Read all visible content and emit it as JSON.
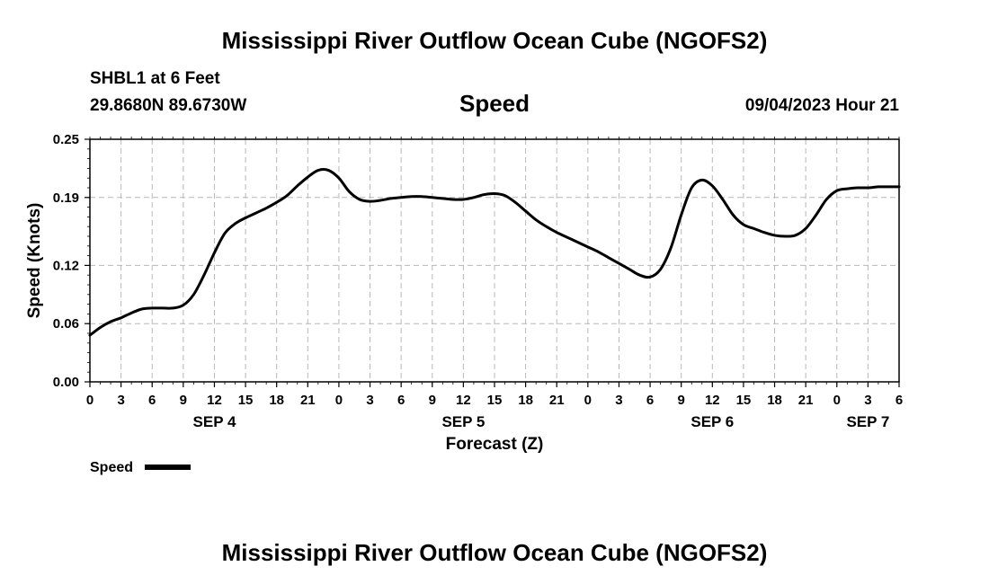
{
  "page": {
    "title_top": "Mississippi River Outflow Ocean Cube (NGOFS2)",
    "title_bottom": "Mississippi River Outflow Ocean Cube (NGOFS2)",
    "station": "SHBL1 at 6 Feet",
    "coords": "29.8680N  89.6730W",
    "plot_title": "Speed",
    "timestamp": "09/04/2023 Hour 21"
  },
  "chart_data": {
    "type": "line",
    "title": "Speed",
    "xlabel": "Forecast (Z)",
    "ylabel": "Speed (Knots)",
    "ylim": [
      0,
      0.25
    ],
    "xlim": [
      0,
      78
    ],
    "y_ticks": [
      0.0,
      0.06,
      0.12,
      0.19,
      0.25
    ],
    "y_tick_labels": [
      "0.00",
      "0.06",
      "0.12",
      "0.19",
      "0.25"
    ],
    "x_ticks": [
      0,
      3,
      6,
      9,
      12,
      15,
      18,
      21,
      24,
      27,
      30,
      33,
      36,
      39,
      42,
      45,
      48,
      51,
      54,
      57,
      60,
      63,
      66,
      69,
      72,
      75,
      78
    ],
    "x_tick_labels": [
      "0",
      "3",
      "6",
      "9",
      "12",
      "15",
      "18",
      "21",
      "0",
      "3",
      "6",
      "9",
      "12",
      "15",
      "18",
      "21",
      "0",
      "3",
      "6",
      "9",
      "12",
      "15",
      "18",
      "21",
      "0",
      "3",
      "6"
    ],
    "date_labels": [
      {
        "x": 12,
        "label": "SEP 4"
      },
      {
        "x": 36,
        "label": "SEP 5"
      },
      {
        "x": 60,
        "label": "SEP 6"
      },
      {
        "x": 75,
        "label": "SEP 7"
      }
    ],
    "grid": true,
    "legend": [
      {
        "name": "Speed",
        "placement": "bottom-left"
      }
    ],
    "series": [
      {
        "name": "Speed",
        "x": [
          0,
          1,
          2,
          3,
          4,
          5,
          6,
          7,
          8,
          9,
          10,
          11,
          12,
          13,
          14,
          15,
          16,
          17,
          18,
          19,
          20,
          21,
          22,
          23,
          24,
          25,
          26,
          27,
          28,
          29,
          30,
          31,
          32,
          33,
          34,
          35,
          36,
          37,
          38,
          39,
          40,
          41,
          42,
          43,
          44,
          45,
          46,
          47,
          48,
          49,
          50,
          51,
          52,
          53,
          54,
          55,
          56,
          57,
          58,
          59,
          60,
          61,
          62,
          63,
          64,
          65,
          66,
          67,
          68,
          69,
          70,
          71,
          72,
          73,
          74,
          75,
          76,
          77,
          78
        ],
        "values": [
          0.048,
          0.056,
          0.062,
          0.066,
          0.071,
          0.075,
          0.076,
          0.076,
          0.076,
          0.079,
          0.09,
          0.11,
          0.133,
          0.153,
          0.163,
          0.169,
          0.174,
          0.179,
          0.185,
          0.192,
          0.202,
          0.211,
          0.218,
          0.218,
          0.21,
          0.196,
          0.188,
          0.186,
          0.187,
          0.189,
          0.19,
          0.191,
          0.191,
          0.19,
          0.189,
          0.188,
          0.188,
          0.19,
          0.193,
          0.194,
          0.192,
          0.185,
          0.176,
          0.167,
          0.16,
          0.154,
          0.149,
          0.144,
          0.139,
          0.134,
          0.128,
          0.122,
          0.116,
          0.11,
          0.108,
          0.116,
          0.138,
          0.172,
          0.2,
          0.208,
          0.202,
          0.188,
          0.172,
          0.162,
          0.158,
          0.154,
          0.151,
          0.15,
          0.151,
          0.158,
          0.172,
          0.188,
          0.197,
          0.199,
          0.2,
          0.2,
          0.201,
          0.201,
          0.201
        ]
      }
    ]
  }
}
